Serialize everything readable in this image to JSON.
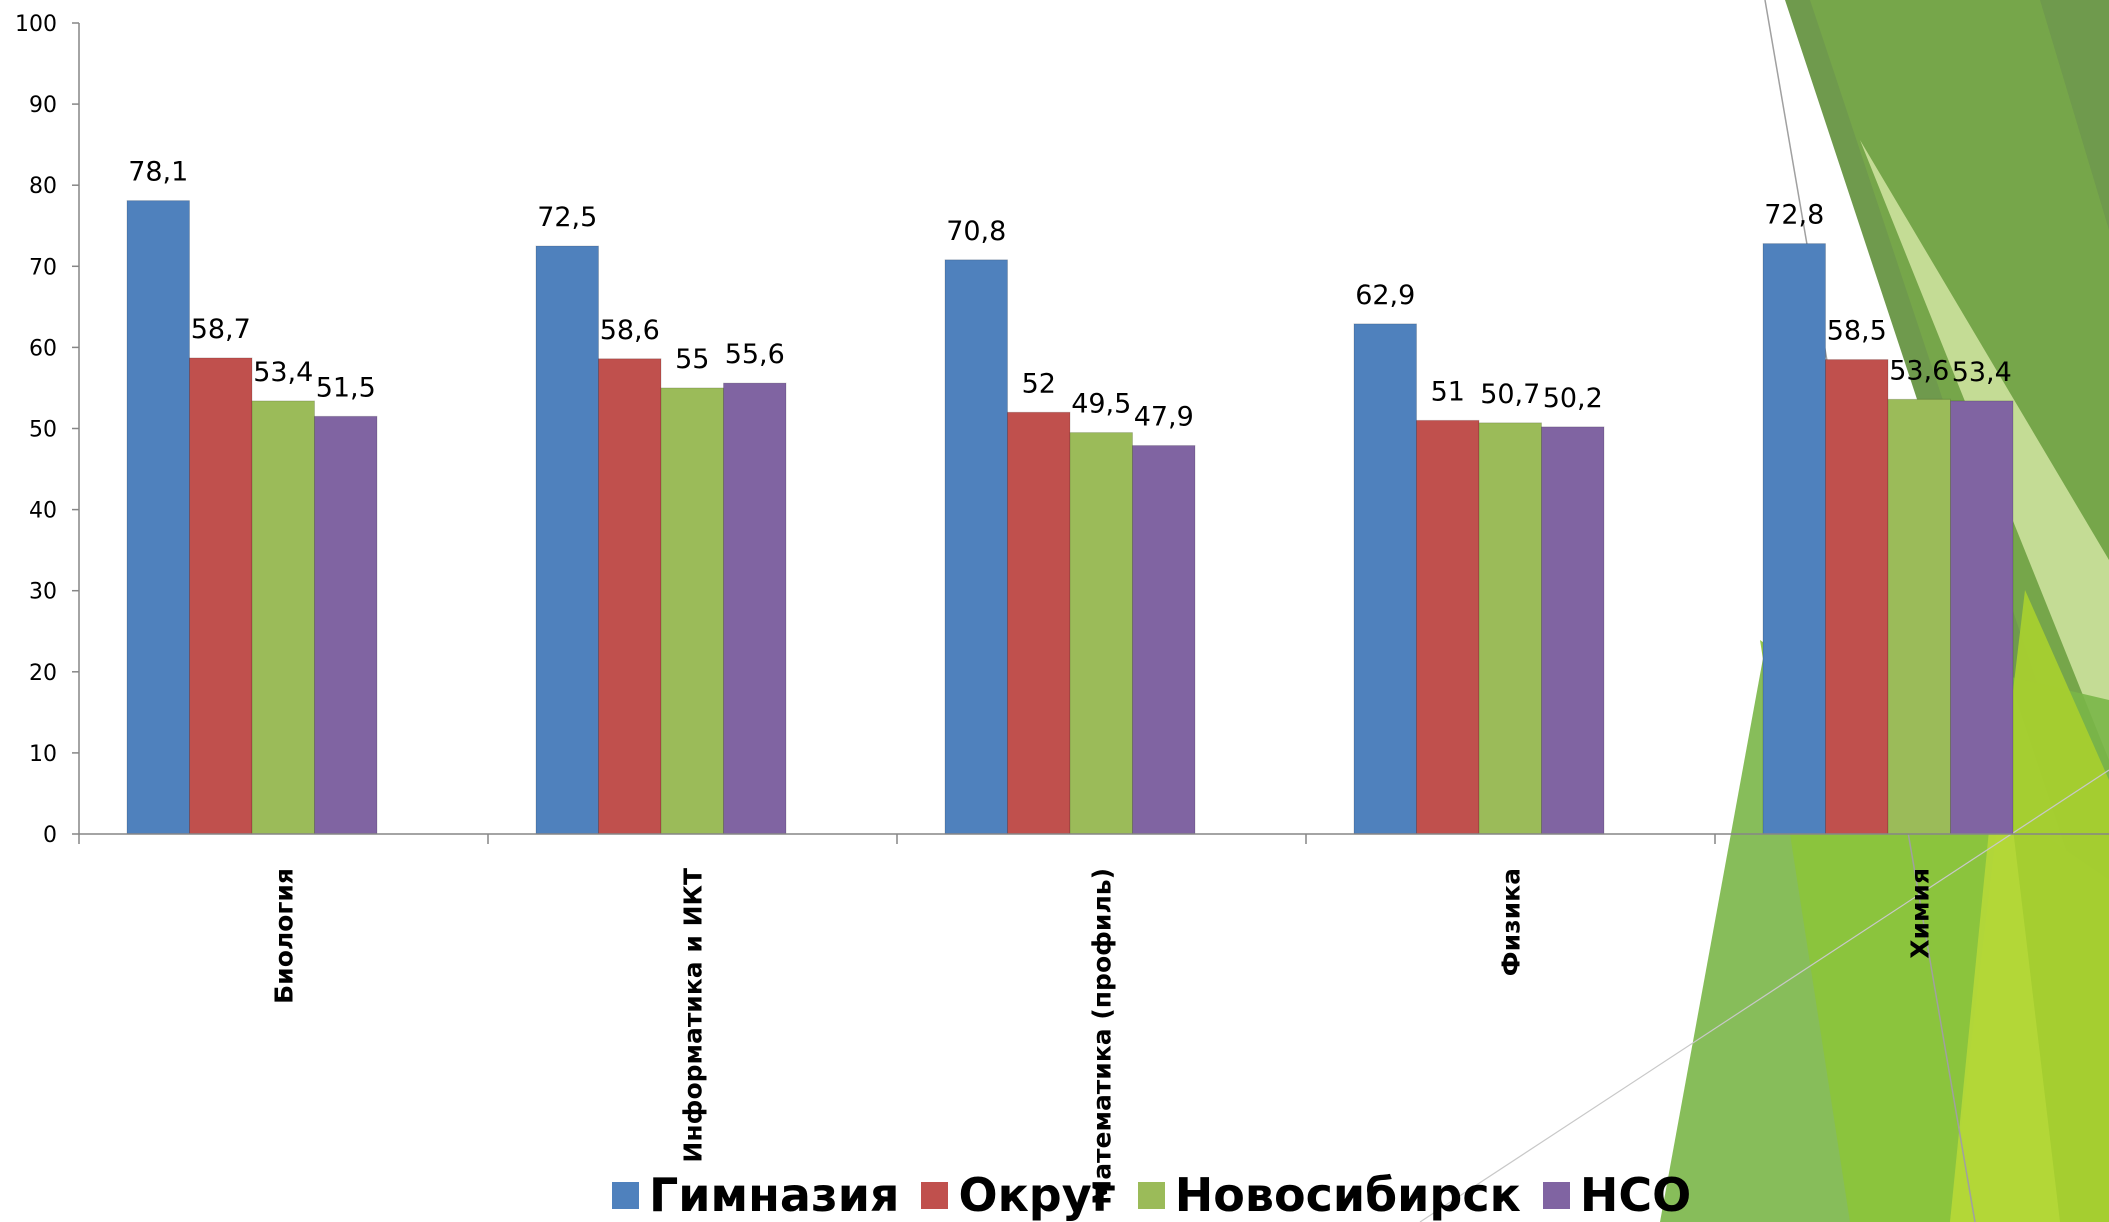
{
  "chart_data": {
    "type": "bar",
    "categories": [
      "Биология",
      "Информатика и ИКТ",
      "Математика (профиль)",
      "Физика",
      "Химия"
    ],
    "series": [
      {
        "name": "Гимназия",
        "color": "#4f81bd",
        "values": [
          78.1,
          72.5,
          70.8,
          62.9,
          72.8
        ],
        "labels": [
          "78,1",
          "72,5",
          "70,8",
          "62,9",
          "72,8"
        ]
      },
      {
        "name": "Округ",
        "color": "#c0504d",
        "values": [
          58.7,
          58.6,
          52,
          51,
          58.5
        ],
        "labels": [
          "58,7",
          "58,6",
          "52",
          "51",
          "58,5"
        ]
      },
      {
        "name": "Новосибирск",
        "color": "#9bbb59",
        "values": [
          53.4,
          55,
          49.5,
          50.7,
          53.6
        ],
        "labels": [
          "53,4",
          "55",
          "49,5",
          "50,7",
          "53,6"
        ]
      },
      {
        "name": "НСО",
        "color": "#8064a2",
        "values": [
          51.5,
          55.6,
          47.9,
          50.2,
          53.4
        ],
        "labels": [
          "51,5",
          "55,6",
          "47,9",
          "50,2",
          "53,4"
        ]
      }
    ],
    "ylim": [
      0,
      100
    ],
    "yticks": [
      "0",
      "10",
      "20",
      "30",
      "40",
      "50",
      "60",
      "70",
      "80",
      "90",
      "100"
    ],
    "grid": false,
    "legend": "bottom",
    "title": "",
    "xlabel": "",
    "ylabel": ""
  }
}
